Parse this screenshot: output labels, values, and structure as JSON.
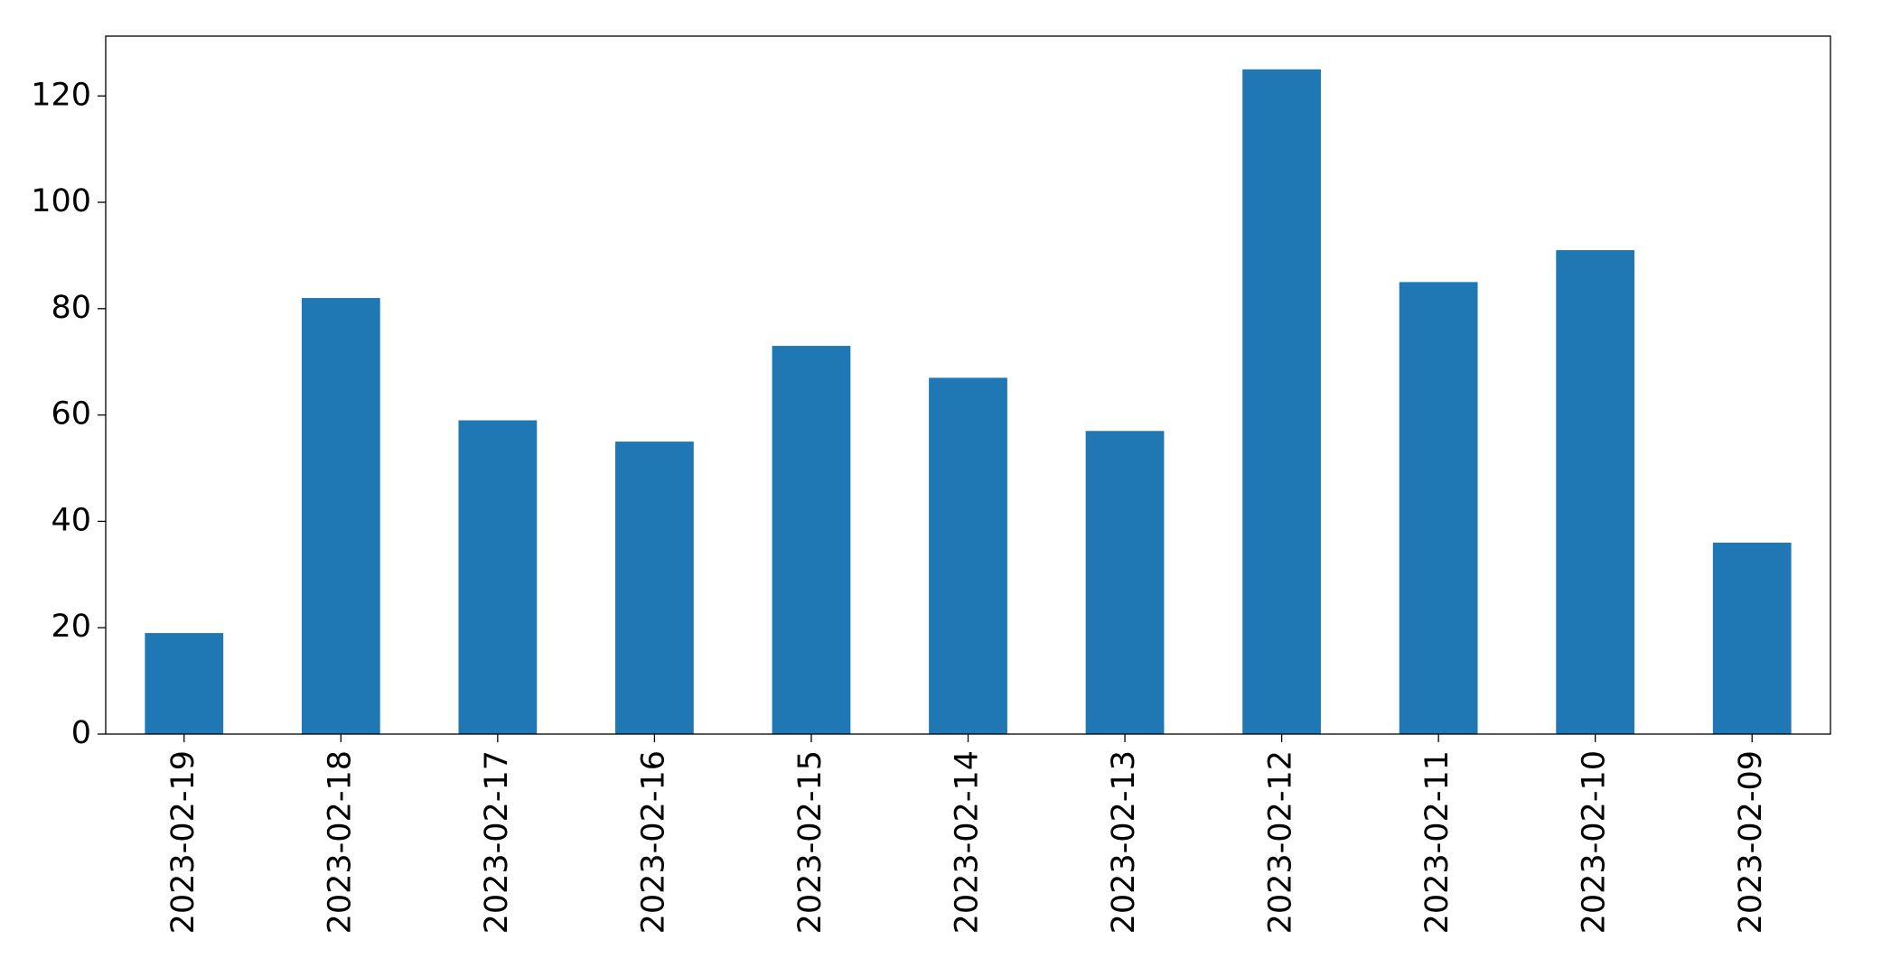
{
  "chart_data": {
    "type": "bar",
    "categories": [
      "2023-02-19",
      "2023-02-18",
      "2023-02-17",
      "2023-02-16",
      "2023-02-15",
      "2023-02-14",
      "2023-02-13",
      "2023-02-12",
      "2023-02-11",
      "2023-02-10",
      "2023-02-09"
    ],
    "values": [
      19,
      82,
      59,
      55,
      73,
      67,
      57,
      125,
      85,
      91,
      36
    ],
    "color": "#1f77b4",
    "ylim": [
      0,
      131.25
    ],
    "yticks": [
      0,
      20,
      40,
      60,
      80,
      100,
      120
    ],
    "grid": false
  }
}
